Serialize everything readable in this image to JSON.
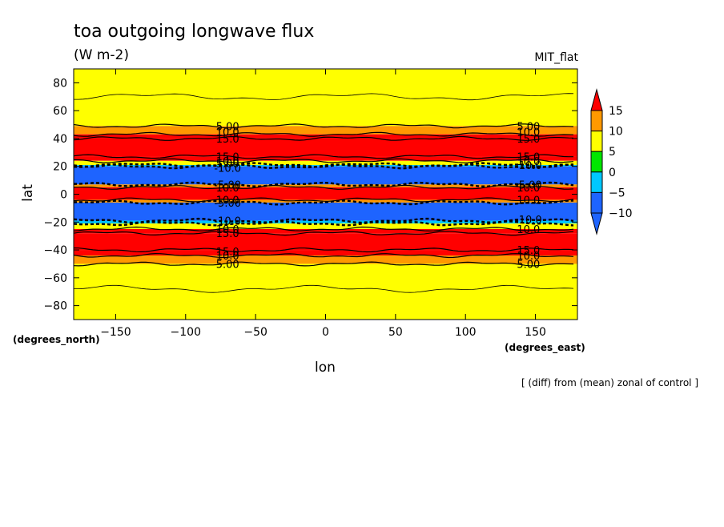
{
  "chart_data": {
    "type": "heatmap",
    "title": "toa outgoing longwave flux",
    "units": "(W m-2)",
    "model": "MIT_flat",
    "xlabel": "lon",
    "ylabel": "lat",
    "x_units_label": "(degrees_east)",
    "y_units_label": "(degrees_north)",
    "note": "[ (diff) from (mean) zonal of control ]",
    "xlim": [
      -180,
      180
    ],
    "ylim": [
      -90,
      90
    ],
    "x_ticks": [
      -150,
      -100,
      -50,
      0,
      50,
      100,
      150
    ],
    "y_ticks": [
      -80,
      -60,
      -40,
      -20,
      0,
      20,
      40,
      60,
      80
    ],
    "colorbar": {
      "levels": [
        -10,
        -5,
        0,
        5,
        10,
        15
      ],
      "colors": [
        "#1e64ff",
        "#00c8ff",
        "#00e600",
        "#ffff00",
        "#ff9900",
        "#ff0000"
      ]
    },
    "bands": [
      {
        "lat_from": 90,
        "lat_to": 49,
        "value": 2
      },
      {
        "lat_from": 49,
        "lat_to": 43,
        "value": 7
      },
      {
        "lat_from": 43,
        "lat_to": 40,
        "value": 12
      },
      {
        "lat_from": 40,
        "lat_to": 27,
        "value": 17
      },
      {
        "lat_from": 27,
        "lat_to": 24,
        "value": 12
      },
      {
        "lat_from": 24,
        "lat_to": 21,
        "value": 2
      },
      {
        "lat_from": 21,
        "lat_to": 20,
        "value": -7
      },
      {
        "lat_from": 20,
        "lat_to": 7,
        "value": -12
      },
      {
        "lat_from": 7,
        "lat_to": 5,
        "value": 7
      },
      {
        "lat_from": 5,
        "lat_to": -4,
        "value": 17
      },
      {
        "lat_from": -4,
        "lat_to": -6,
        "value": 7
      },
      {
        "lat_from": -6,
        "lat_to": -19,
        "value": -12
      },
      {
        "lat_from": -19,
        "lat_to": -21,
        "value": -7
      },
      {
        "lat_from": -21,
        "lat_to": -25,
        "value": 2
      },
      {
        "lat_from": -25,
        "lat_to": -28,
        "value": 12
      },
      {
        "lat_from": -28,
        "lat_to": -40,
        "value": 17
      },
      {
        "lat_from": -40,
        "lat_to": -44,
        "value": 12
      },
      {
        "lat_from": -44,
        "lat_to": -50,
        "value": 7
      },
      {
        "lat_from": -50,
        "lat_to": -90,
        "value": 2
      }
    ],
    "contour_labels": [
      {
        "lon": -70,
        "lat": 49,
        "text": "5.00"
      },
      {
        "lon": -70,
        "lat": 45,
        "text": "10.0"
      },
      {
        "lon": -70,
        "lat": 40,
        "text": "15.0"
      },
      {
        "lon": -70,
        "lat": 27,
        "text": "15.0"
      },
      {
        "lon": -70,
        "lat": 24,
        "text": "10.0"
      },
      {
        "lon": -70,
        "lat": 22,
        "text": "5.00"
      },
      {
        "lon": -70,
        "lat": 19,
        "text": "-10.0"
      },
      {
        "lon": -70,
        "lat": 7,
        "text": "-5.00"
      },
      {
        "lon": -70,
        "lat": 5,
        "text": "10.0"
      },
      {
        "lon": -70,
        "lat": -4,
        "text": "10.0"
      },
      {
        "lon": -70,
        "lat": -6,
        "text": "-5.00"
      },
      {
        "lon": -70,
        "lat": -19,
        "text": "-10.0"
      },
      {
        "lon": -70,
        "lat": -25,
        "text": "10.0"
      },
      {
        "lon": -70,
        "lat": -28,
        "text": "15.0"
      },
      {
        "lon": -70,
        "lat": -41,
        "text": "15.0"
      },
      {
        "lon": -70,
        "lat": -44,
        "text": "10.0"
      },
      {
        "lon": -70,
        "lat": -50,
        "text": "5.00"
      },
      {
        "lon": 145,
        "lat": 49,
        "text": "5.00"
      },
      {
        "lon": 145,
        "lat": 45,
        "text": "10.0"
      },
      {
        "lon": 145,
        "lat": 40,
        "text": "15.0"
      },
      {
        "lon": 145,
        "lat": 27,
        "text": "15.0"
      },
      {
        "lon": 145,
        "lat": 24,
        "text": "10.0"
      },
      {
        "lon": 145,
        "lat": 21,
        "text": "-10.0"
      },
      {
        "lon": 145,
        "lat": 7,
        "text": "-5.00"
      },
      {
        "lon": 145,
        "lat": 5,
        "text": "10.0"
      },
      {
        "lon": 145,
        "lat": -4,
        "text": "10.0"
      },
      {
        "lon": 145,
        "lat": -18,
        "text": "-10.0"
      },
      {
        "lon": 145,
        "lat": -25,
        "text": "10.0"
      },
      {
        "lon": 145,
        "lat": -40,
        "text": "15.0"
      },
      {
        "lon": 145,
        "lat": -44,
        "text": "10.0"
      },
      {
        "lon": 145,
        "lat": -50,
        "text": "5.00"
      }
    ]
  }
}
